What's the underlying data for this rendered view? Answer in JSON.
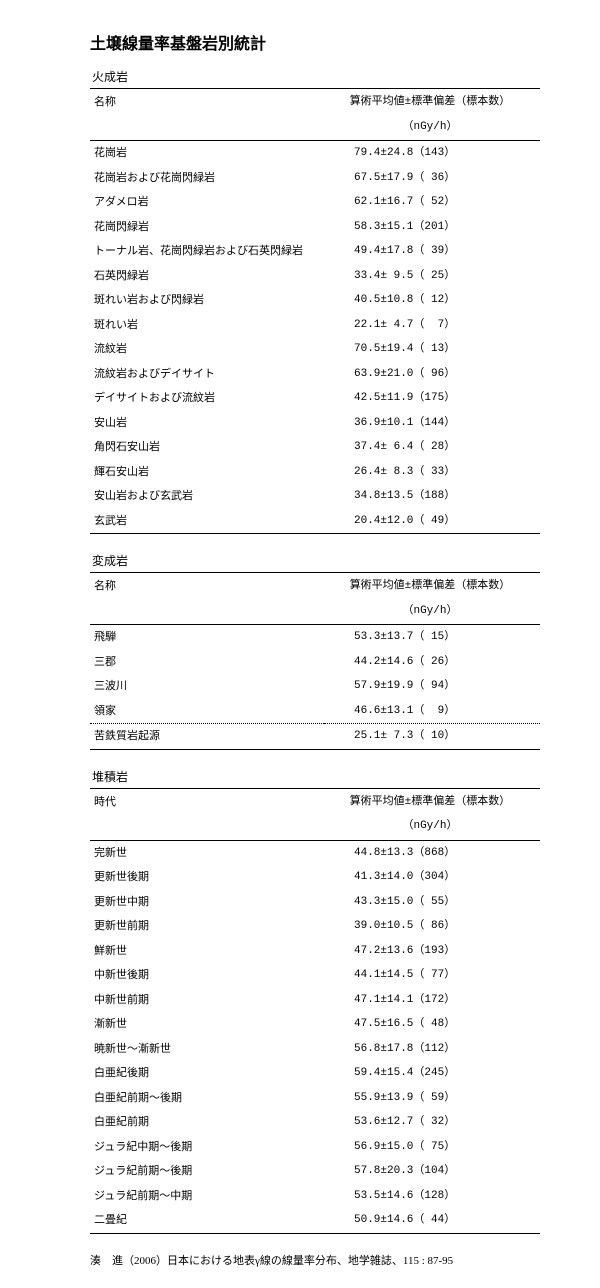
{
  "page": {
    "title": "土壌線量率基盤岩別統計"
  },
  "section1": {
    "name": "火成岩",
    "col1": "名称",
    "col2": "算術平均値±標準偏差（標本数）",
    "unit": "（nGy/h）",
    "rows": [
      {
        "name": "花崗岩",
        "val": "79.4±24.8（143）"
      },
      {
        "name": "花崗岩および花崗閃緑岩",
        "val": "67.5±17.9（ 36）"
      },
      {
        "name": "アダメロ岩",
        "val": "62.1±16.7（ 52）"
      },
      {
        "name": "花崗閃緑岩",
        "val": "58.3±15.1（201）"
      },
      {
        "name": "トーナル岩、花崗閃緑岩および石英閃緑岩",
        "val": "49.4±17.8（ 39）"
      },
      {
        "name": "石英閃緑岩",
        "val": "33.4± 9.5（ 25）"
      },
      {
        "name": "斑れい岩および閃緑岩",
        "val": "40.5±10.8（ 12）"
      },
      {
        "name": "斑れい岩",
        "val": "22.1± 4.7（  7）"
      },
      {
        "name": "流紋岩",
        "val": "70.5±19.4（ 13）"
      },
      {
        "name": "流紋岩およびデイサイト",
        "val": "63.9±21.0（ 96）"
      },
      {
        "name": "デイサイトおよび流紋岩",
        "val": "42.5±11.9（175）"
      },
      {
        "name": "安山岩",
        "val": "36.9±10.1（144）"
      },
      {
        "name": "角閃石安山岩",
        "val": "37.4± 6.4（ 28）"
      },
      {
        "name": "輝石安山岩",
        "val": "26.4± 8.3（ 33）"
      },
      {
        "name": "安山岩および玄武岩",
        "val": "34.8±13.5（188）"
      },
      {
        "name": "玄武岩",
        "val": "20.4±12.0（ 49）"
      }
    ]
  },
  "section2": {
    "name": "変成岩",
    "col1": "名称",
    "col2": "算術平均値±標準偏差（標本数）",
    "unit": "（nGy/h）",
    "rows": [
      {
        "name": "飛騨",
        "val": "53.3±13.7（ 15）"
      },
      {
        "name": "三郡",
        "val": "44.2±14.6（ 26）"
      },
      {
        "name": "三波川",
        "val": "57.9±19.9（ 94）"
      },
      {
        "name": "領家",
        "val": "46.6±13.1（  9）"
      },
      {
        "name": "苦鉄質岩起源",
        "val": "25.1± 7.3（ 10）",
        "dotted": true
      }
    ]
  },
  "section3": {
    "name": "堆積岩",
    "col1": "時代",
    "col2": "算術平均値±標準偏差（標本数）",
    "unit": "（nGy/h）",
    "rows": [
      {
        "name": "完新世",
        "val": "44.8±13.3（868）"
      },
      {
        "name": "更新世後期",
        "val": "41.3±14.0（304）"
      },
      {
        "name": "更新世中期",
        "val": "43.3±15.0（ 55）"
      },
      {
        "name": "更新世前期",
        "val": "39.0±10.5（ 86）"
      },
      {
        "name": "鮮新世",
        "val": "47.2±13.6（193）"
      },
      {
        "name": "中新世後期",
        "val": "44.1±14.5（ 77）"
      },
      {
        "name": "中新世前期",
        "val": "47.1±14.1（172）"
      },
      {
        "name": "漸新世",
        "val": "47.5±16.5（ 48）"
      },
      {
        "name": "暁新世～漸新世",
        "val": "56.8±17.8（112）"
      },
      {
        "name": "白亜紀後期",
        "val": "59.4±15.4（245）"
      },
      {
        "name": "白亜紀前期～後期",
        "val": "55.9±13.9（ 59）"
      },
      {
        "name": "白亜紀前期",
        "val": "53.6±12.7（ 32）"
      },
      {
        "name": "ジュラ紀中期～後期",
        "val": "56.9±15.0（ 75）"
      },
      {
        "name": "ジュラ紀前期～後期",
        "val": "57.8±20.3（104）"
      },
      {
        "name": "ジュラ紀前期～中期",
        "val": "53.5±14.6（128）"
      },
      {
        "name": "二畳紀",
        "val": "50.9±14.6（ 44）"
      }
    ]
  },
  "citation": "湊　進（2006）日本における地表γ線の線量率分布、地学雑誌、115 : 87-95"
}
